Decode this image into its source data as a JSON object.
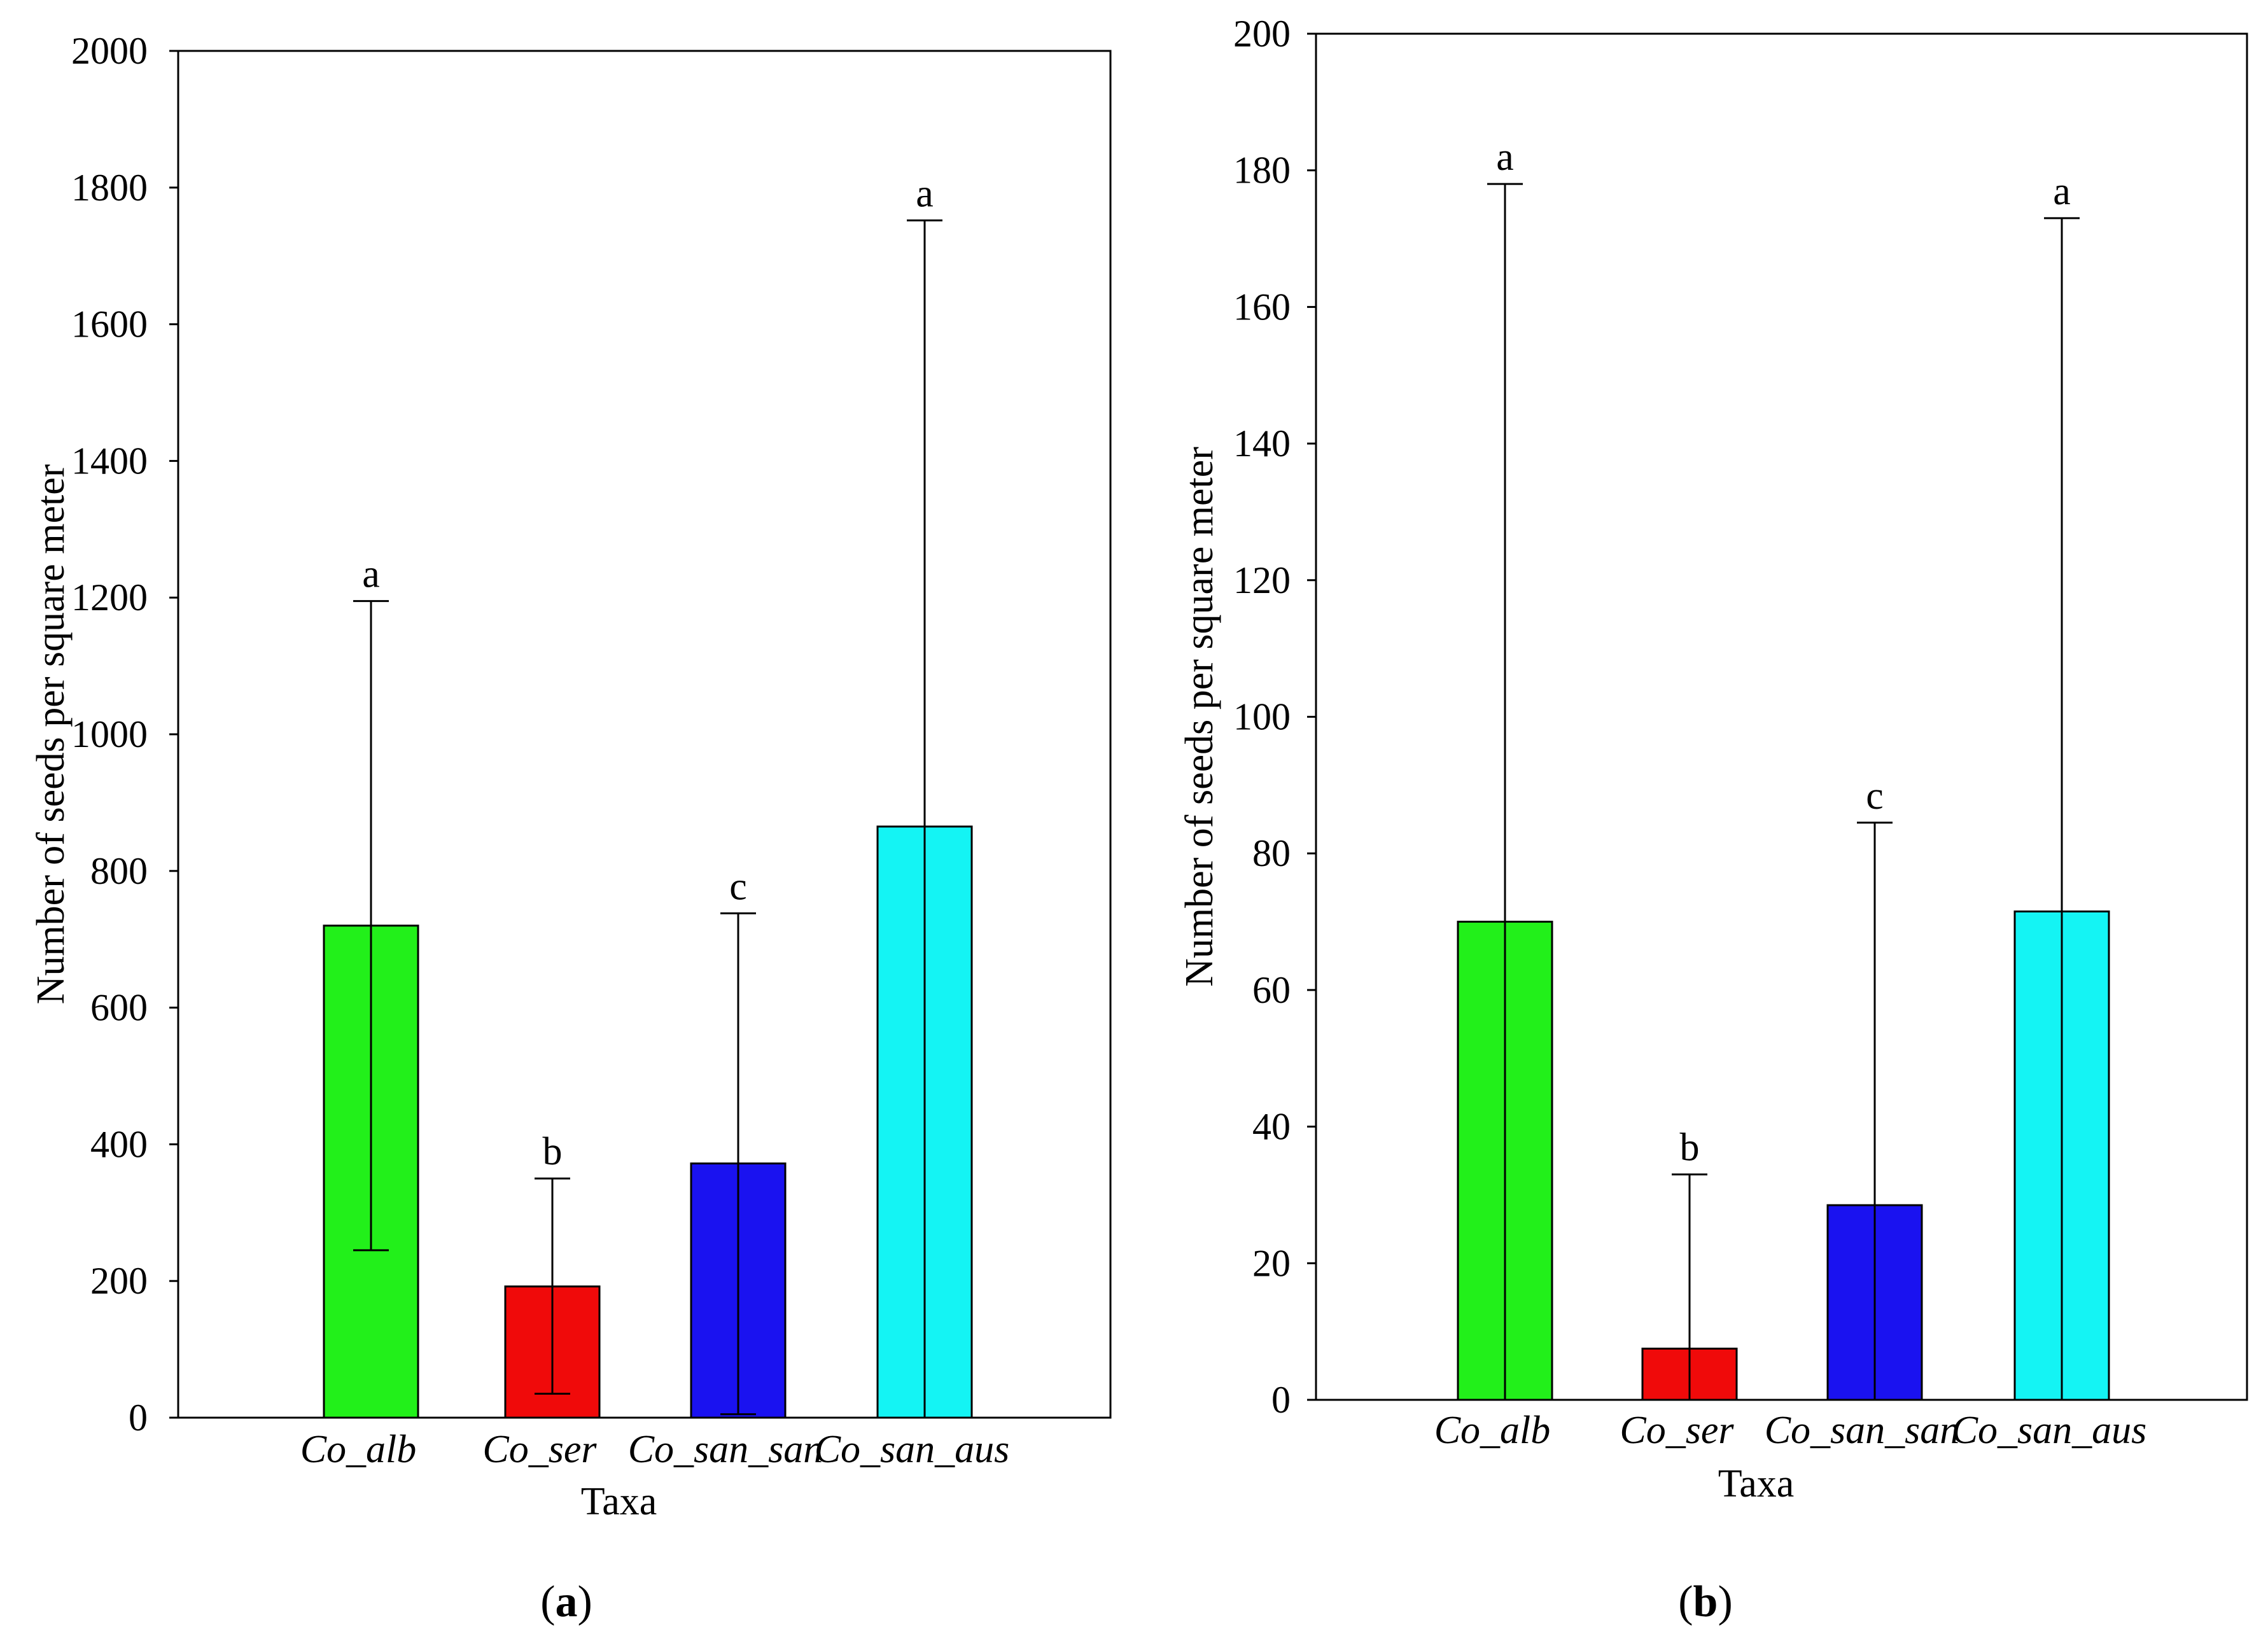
{
  "chart_data": [
    {
      "type": "bar",
      "panel_label": "a",
      "xlabel": "Taxa",
      "ylabel": "Number of seeds per square meter",
      "ylim": [
        0,
        2000
      ],
      "yticks": [
        0,
        200,
        400,
        600,
        800,
        1000,
        1200,
        1400,
        1600,
        1800,
        2000
      ],
      "categories": [
        "Co_alb",
        "Co_ser",
        "Co_san_san",
        "Co_san_aus"
      ],
      "values": [
        720,
        192,
        372,
        865
      ],
      "error_upper": [
        1195,
        350,
        738,
        1752
      ],
      "error_lower": [
        245,
        35,
        5,
        0
      ],
      "significance": [
        "a",
        "b",
        "c",
        "a"
      ],
      "colors": [
        "#22f01a",
        "#f00a0a",
        "#1a12f0",
        "#14f4f4"
      ]
    },
    {
      "type": "bar",
      "panel_label": "b",
      "xlabel": "Taxa",
      "ylabel": "Number of seeds per square meter",
      "ylim": [
        0,
        200
      ],
      "yticks": [
        0,
        20,
        40,
        60,
        80,
        100,
        120,
        140,
        160,
        180,
        200
      ],
      "categories": [
        "Co_alb",
        "Co_ser",
        "Co_san_san",
        "Co_san_aus"
      ],
      "values": [
        70,
        7.5,
        28.5,
        71.5
      ],
      "error_upper": [
        178,
        33,
        84.5,
        173
      ],
      "error_lower": [
        0,
        0,
        0,
        0
      ],
      "significance": [
        "a",
        "b",
        "c",
        "a"
      ],
      "colors": [
        "#22f01a",
        "#f00a0a",
        "#1a12f0",
        "#14f4f4"
      ]
    }
  ]
}
